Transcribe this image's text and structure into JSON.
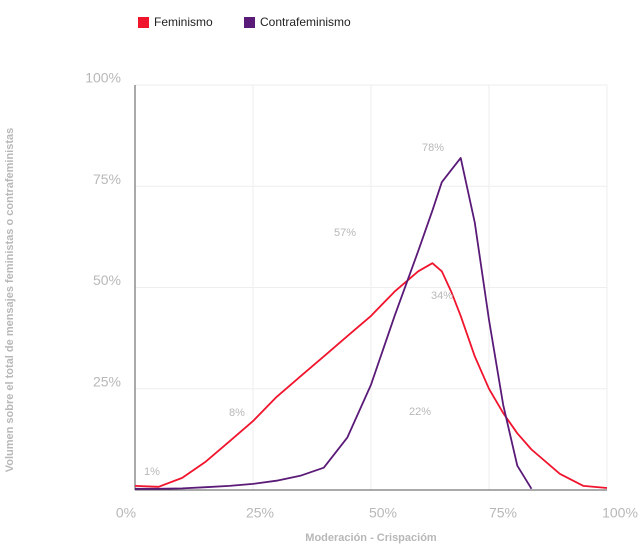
{
  "chart_data": {
    "type": "line",
    "x_label": "Moderación - Crispacióm",
    "y_label": "Volumen sobre el total de mensajes feministas o contrafeministas",
    "x": [
      0,
      5,
      10,
      15,
      20,
      25,
      30,
      35,
      40,
      45,
      50,
      55,
      60,
      63,
      65,
      67,
      69,
      72,
      75,
      78,
      81,
      84,
      90,
      95,
      100
    ],
    "series": [
      {
        "name": "Feminismo",
        "color": "#f0142d",
        "values": [
          1,
          0.8,
          3,
          7,
          12,
          17,
          23,
          28,
          33,
          38,
          43,
          49,
          54,
          56,
          54,
          49,
          43,
          33,
          25,
          19,
          14,
          10,
          4,
          1,
          0.5
        ]
      },
      {
        "name": "Contrafeminismo",
        "color": "#5a1a78",
        "values": [
          0.3,
          0.3,
          0.4,
          0.7,
          1,
          1.5,
          2.3,
          3.5,
          5.5,
          13,
          26,
          43,
          59,
          69,
          76,
          79,
          82,
          66,
          42,
          21,
          6,
          0.3,
          null,
          null,
          null
        ]
      }
    ],
    "annotations": [
      "78%",
      "57%",
      "34%",
      "22%",
      "8%",
      "1%"
    ],
    "xlim": [
      0,
      100
    ],
    "xticks": [
      {
        "value": 0,
        "label": "0%"
      },
      {
        "value": 25,
        "label": "25%"
      },
      {
        "value": 50,
        "label": "50%"
      },
      {
        "value": 75,
        "label": "75%"
      },
      {
        "value": 100,
        "label": "100%"
      }
    ],
    "ylim": [
      0,
      100
    ],
    "yticks": [
      {
        "value": 25,
        "label": "25%"
      },
      {
        "value": 50,
        "label": "50%"
      },
      {
        "value": 75,
        "label": "75%"
      },
      {
        "value": 100,
        "label": "100%"
      }
    ],
    "grid": true,
    "legend": "top-left"
  }
}
